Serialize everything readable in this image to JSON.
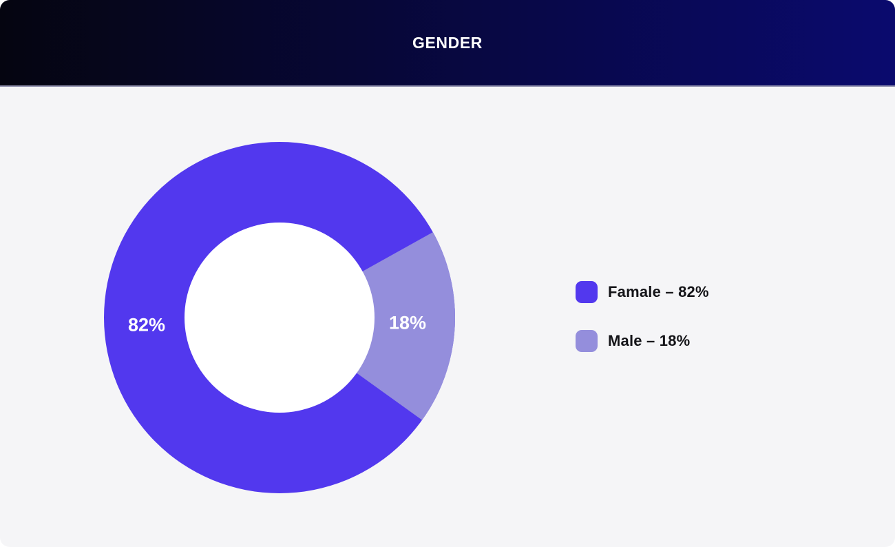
{
  "header": {
    "title": "GENDER"
  },
  "chart_data": {
    "type": "pie",
    "subtype": "donut",
    "title": "GENDER",
    "categories": [
      "Famale",
      "Male"
    ],
    "values": [
      82,
      18
    ],
    "unit": "%",
    "slice_labels": [
      "82%",
      "18%"
    ],
    "colors": [
      "#5238EE",
      "#948EDC"
    ],
    "label_color": "#FFFFFF",
    "legend_position": "right",
    "legend_entries": [
      "Famale – 82%",
      "Male – 18%"
    ],
    "inner_radius_ratio": 0.541,
    "slice2_mid_angle_deg": 3.3
  },
  "legend": {
    "items": [
      {
        "label": "Famale – 82%",
        "color": "#5238EE"
      },
      {
        "label": "Male – 18%",
        "color": "#948EDC"
      }
    ]
  },
  "theme": {
    "header_gradient_left": "#050510",
    "header_gradient_right": "#0A0A6E",
    "header_divider": "#9595B2",
    "title_color": "#FFFFFF",
    "body_background": "#F5F5F7",
    "page_background": "#FFFFFF",
    "legend_text_color": "#141418",
    "donut_hole_color": "#FFFFFF"
  }
}
